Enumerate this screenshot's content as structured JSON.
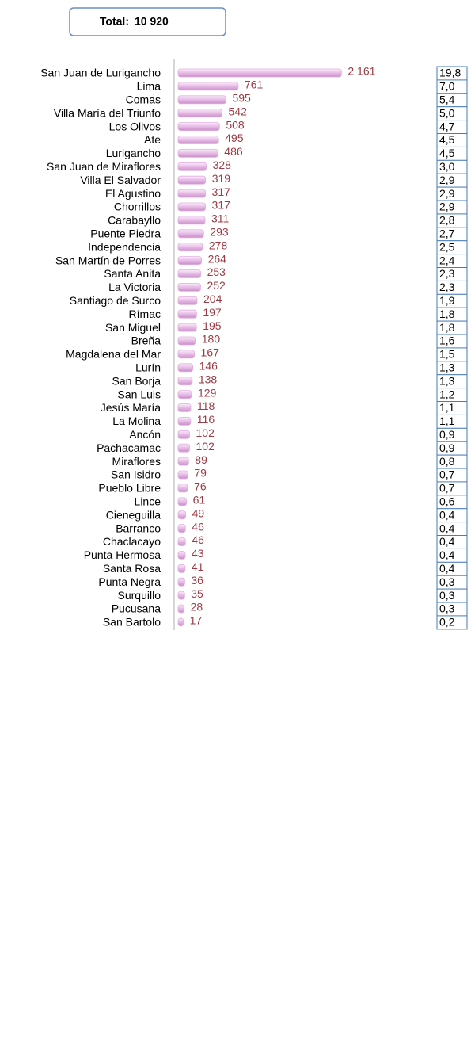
{
  "chart_data": {
    "type": "bar",
    "total_title": "Total:",
    "total": {
      "value": 10920,
      "label": "10 920"
    },
    "categories": [
      "San Juan de Lurigancho",
      "Lima",
      "Comas",
      "Villa María del Triunfo",
      "Los Olivos",
      "Ate",
      "Lurigancho",
      "San Juan de Miraflores",
      "Villa El Salvador",
      "El Agustino",
      "Chorrillos",
      "Carabayllo",
      "Puente Piedra",
      "Independencia",
      "San Martín de Porres",
      "Santa Anita",
      "La Victoria",
      "Santiago de Surco",
      "Rímac",
      "San Miguel",
      "Breña",
      "Magdalena del Mar",
      "Lurín",
      "San Borja",
      "San Luis",
      "Jesús María",
      "La Molina",
      "Ancón",
      "Pachacamac",
      "Miraflores",
      "San Isidro",
      "Pueblo Libre",
      "Lince",
      "Cieneguilla",
      "Barranco",
      "Chaclacayo",
      "Punta Hermosa",
      "Santa Rosa",
      "Punta Negra",
      "Surquillo",
      "Pucusana",
      "San Bartolo"
    ],
    "values": [
      2161,
      761,
      595,
      542,
      508,
      495,
      486,
      328,
      319,
      317,
      317,
      311,
      293,
      278,
      264,
      253,
      252,
      204,
      197,
      195,
      180,
      167,
      146,
      138,
      129,
      118,
      116,
      102,
      102,
      89,
      79,
      76,
      61,
      49,
      46,
      46,
      43,
      41,
      36,
      35,
      28,
      17
    ],
    "value_labels": [
      "2 161",
      "761",
      "595",
      "542",
      "508",
      "495",
      "486",
      "328",
      "319",
      "317",
      "317",
      "311",
      "293",
      "278",
      "264",
      "253",
      "252",
      "204",
      "197",
      "195",
      "180",
      "167",
      "146",
      "138",
      "129",
      "118",
      "116",
      "102",
      "102",
      "89",
      "79",
      "76",
      "61",
      "49",
      "46",
      "46",
      "43",
      "41",
      "36",
      "35",
      "28",
      "17"
    ],
    "shares": [
      {
        "value": 19.8,
        "label": "19,8"
      },
      {
        "value": 7.0,
        "label": "7,0"
      },
      {
        "value": 5.4,
        "label": "5,4"
      },
      {
        "value": 5.0,
        "label": "5,0"
      },
      {
        "value": 4.7,
        "label": "4,7"
      },
      {
        "value": 4.5,
        "label": "4,5"
      },
      {
        "value": 4.5,
        "label": "4,5"
      },
      {
        "value": 3.0,
        "label": "3,0"
      },
      {
        "value": 2.9,
        "label": "2,9"
      },
      {
        "value": 2.9,
        "label": "2,9"
      },
      {
        "value": 2.9,
        "label": "2,9"
      },
      {
        "value": 2.8,
        "label": "2,8"
      },
      {
        "value": 2.7,
        "label": "2,7"
      },
      {
        "value": 2.5,
        "label": "2,5"
      },
      {
        "value": 2.4,
        "label": "2,4"
      },
      {
        "value": 2.3,
        "label": "2,3"
      },
      {
        "value": 2.3,
        "label": "2,3"
      },
      {
        "value": 1.9,
        "label": "1,9"
      },
      {
        "value": 1.8,
        "label": "1,8"
      },
      {
        "value": 1.8,
        "label": "1,8"
      },
      {
        "value": 1.6,
        "label": "1,6"
      },
      {
        "value": 1.5,
        "label": "1,5"
      },
      {
        "value": 1.3,
        "label": "1,3"
      },
      {
        "value": 1.3,
        "label": "1,3"
      },
      {
        "value": 1.2,
        "label": "1,2"
      },
      {
        "value": 1.1,
        "label": "1,1"
      },
      {
        "value": 1.1,
        "label": "1,1"
      },
      {
        "value": 0.9,
        "label": "0,9"
      },
      {
        "value": 0.9,
        "label": "0,9"
      },
      {
        "value": 0.8,
        "label": "0,8"
      },
      {
        "value": 0.7,
        "label": "0,7"
      },
      {
        "value": 0.7,
        "label": "0,7"
      },
      {
        "value": 0.6,
        "label": "0,6"
      },
      {
        "value": 0.4,
        "label": "0,4"
      },
      {
        "value": 0.4,
        "label": "0,4"
      },
      {
        "value": 0.4,
        "label": "0,4"
      },
      {
        "value": 0.4,
        "label": "0,4"
      },
      {
        "value": 0.4,
        "label": "0,4"
      },
      {
        "value": 0.3,
        "label": "0,3"
      },
      {
        "value": 0.3,
        "label": "0,3"
      },
      {
        "value": 0.3,
        "label": "0,3"
      },
      {
        "value": 0.2,
        "label": "0,2"
      }
    ],
    "xlim": [
      0,
      2200
    ],
    "color": "#e2aee0",
    "label_color": "#9b3b44"
  }
}
